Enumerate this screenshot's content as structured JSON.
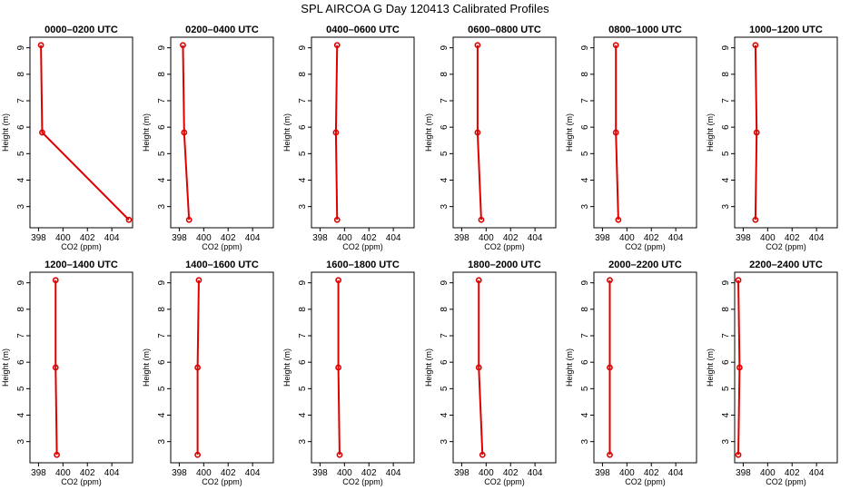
{
  "figure": {
    "title": "SPL AIRCOA G  Day 120413  Calibrated Profiles"
  },
  "style": {
    "series_color": "#dd0000",
    "axis_color": "#000000",
    "background": "#ffffff"
  },
  "chart_data": [
    {
      "type": "line",
      "title": "0000–0200 UTC",
      "xlabel": "CO2 (ppm)",
      "ylabel": "Height (m)",
      "xlim": [
        397.3,
        405.7
      ],
      "ylim": [
        2.2,
        9.4
      ],
      "xticks": [
        398,
        400,
        402,
        404
      ],
      "yticks": [
        3,
        4,
        5,
        6,
        7,
        8,
        9
      ],
      "series": [
        {
          "x": [
            398.2,
            398.3,
            405.4
          ],
          "y": [
            9.1,
            5.8,
            2.5
          ]
        }
      ]
    },
    {
      "type": "line",
      "title": "0200–0400 UTC",
      "xlabel": "CO2 (ppm)",
      "ylabel": "Height (m)",
      "xlim": [
        397.3,
        405.7
      ],
      "ylim": [
        2.2,
        9.4
      ],
      "xticks": [
        398,
        400,
        402,
        404
      ],
      "yticks": [
        3,
        4,
        5,
        6,
        7,
        8,
        9
      ],
      "series": [
        {
          "x": [
            398.3,
            398.4,
            398.8
          ],
          "y": [
            9.1,
            5.8,
            2.5
          ]
        }
      ]
    },
    {
      "type": "line",
      "title": "0400–0600 UTC",
      "xlabel": "CO2 (ppm)",
      "ylabel": "Height (m)",
      "xlim": [
        397.3,
        405.7
      ],
      "ylim": [
        2.2,
        9.4
      ],
      "xticks": [
        398,
        400,
        402,
        404
      ],
      "yticks": [
        3,
        4,
        5,
        6,
        7,
        8,
        9
      ],
      "series": [
        {
          "x": [
            399.4,
            399.3,
            399.4
          ],
          "y": [
            9.1,
            5.8,
            2.5
          ]
        }
      ]
    },
    {
      "type": "line",
      "title": "0600–0800 UTC",
      "xlabel": "CO2 (ppm)",
      "ylabel": "Height (m)",
      "xlim": [
        397.3,
        405.7
      ],
      "ylim": [
        2.2,
        9.4
      ],
      "xticks": [
        398,
        400,
        402,
        404
      ],
      "yticks": [
        3,
        4,
        5,
        6,
        7,
        8,
        9
      ],
      "series": [
        {
          "x": [
            399.3,
            399.3,
            399.6
          ],
          "y": [
            9.1,
            5.8,
            2.5
          ]
        }
      ]
    },
    {
      "type": "line",
      "title": "0800–1000 UTC",
      "xlabel": "CO2 (ppm)",
      "ylabel": "Height (m)",
      "xlim": [
        397.3,
        405.7
      ],
      "ylim": [
        2.2,
        9.4
      ],
      "xticks": [
        398,
        400,
        402,
        404
      ],
      "yticks": [
        3,
        4,
        5,
        6,
        7,
        8,
        9
      ],
      "series": [
        {
          "x": [
            399.1,
            399.1,
            399.3
          ],
          "y": [
            9.1,
            5.8,
            2.5
          ]
        }
      ]
    },
    {
      "type": "line",
      "title": "1000–1200 UTC",
      "xlabel": "CO2 (ppm)",
      "ylabel": "Height (m)",
      "xlim": [
        397.3,
        405.7
      ],
      "ylim": [
        2.2,
        9.4
      ],
      "xticks": [
        398,
        400,
        402,
        404
      ],
      "yticks": [
        3,
        4,
        5,
        6,
        7,
        8,
        9
      ],
      "series": [
        {
          "x": [
            399.0,
            399.1,
            399.0
          ],
          "y": [
            9.1,
            5.8,
            2.5
          ]
        }
      ]
    },
    {
      "type": "line",
      "title": "1200–1400 UTC",
      "xlabel": "CO2 (ppm)",
      "ylabel": "Height (m)",
      "xlim": [
        397.3,
        405.7
      ],
      "ylim": [
        2.2,
        9.4
      ],
      "xticks": [
        398,
        400,
        402,
        404
      ],
      "yticks": [
        3,
        4,
        5,
        6,
        7,
        8,
        9
      ],
      "series": [
        {
          "x": [
            399.4,
            399.4,
            399.5
          ],
          "y": [
            9.1,
            5.8,
            2.5
          ]
        }
      ]
    },
    {
      "type": "line",
      "title": "1400–1600 UTC",
      "xlabel": "CO2 (ppm)",
      "ylabel": "Height (m)",
      "xlim": [
        397.3,
        405.7
      ],
      "ylim": [
        2.2,
        9.4
      ],
      "xticks": [
        398,
        400,
        402,
        404
      ],
      "yticks": [
        3,
        4,
        5,
        6,
        7,
        8,
        9
      ],
      "series": [
        {
          "x": [
            399.6,
            399.5,
            399.5
          ],
          "y": [
            9.1,
            5.8,
            2.5
          ]
        }
      ]
    },
    {
      "type": "line",
      "title": "1600–1800 UTC",
      "xlabel": "CO2 (ppm)",
      "ylabel": "Height (m)",
      "xlim": [
        397.3,
        405.7
      ],
      "ylim": [
        2.2,
        9.4
      ],
      "xticks": [
        398,
        400,
        402,
        404
      ],
      "yticks": [
        3,
        4,
        5,
        6,
        7,
        8,
        9
      ],
      "series": [
        {
          "x": [
            399.5,
            399.5,
            399.6
          ],
          "y": [
            9.1,
            5.8,
            2.5
          ]
        }
      ]
    },
    {
      "type": "line",
      "title": "1800–2000 UTC",
      "xlabel": "CO2 (ppm)",
      "ylabel": "Height (m)",
      "xlim": [
        397.3,
        405.7
      ],
      "ylim": [
        2.2,
        9.4
      ],
      "xticks": [
        398,
        400,
        402,
        404
      ],
      "yticks": [
        3,
        4,
        5,
        6,
        7,
        8,
        9
      ],
      "series": [
        {
          "x": [
            399.4,
            399.4,
            399.7
          ],
          "y": [
            9.1,
            5.8,
            2.5
          ]
        }
      ]
    },
    {
      "type": "line",
      "title": "2000–2200 UTC",
      "xlabel": "CO2 (ppm)",
      "ylabel": "Height (m)",
      "xlim": [
        397.3,
        405.7
      ],
      "ylim": [
        2.2,
        9.4
      ],
      "xticks": [
        398,
        400,
        402,
        404
      ],
      "yticks": [
        3,
        4,
        5,
        6,
        7,
        8,
        9
      ],
      "series": [
        {
          "x": [
            398.6,
            398.6,
            398.6
          ],
          "y": [
            9.1,
            5.8,
            2.5
          ]
        }
      ]
    },
    {
      "type": "line",
      "title": "2200–2400 UTC",
      "xlabel": "CO2 (ppm)",
      "ylabel": "Height (m)",
      "xlim": [
        397.3,
        405.7
      ],
      "ylim": [
        2.2,
        9.4
      ],
      "xticks": [
        398,
        400,
        402,
        404
      ],
      "yticks": [
        3,
        4,
        5,
        6,
        7,
        8,
        9
      ],
      "series": [
        {
          "x": [
            397.6,
            397.7,
            397.6
          ],
          "y": [
            9.1,
            5.8,
            2.5
          ]
        }
      ]
    }
  ]
}
